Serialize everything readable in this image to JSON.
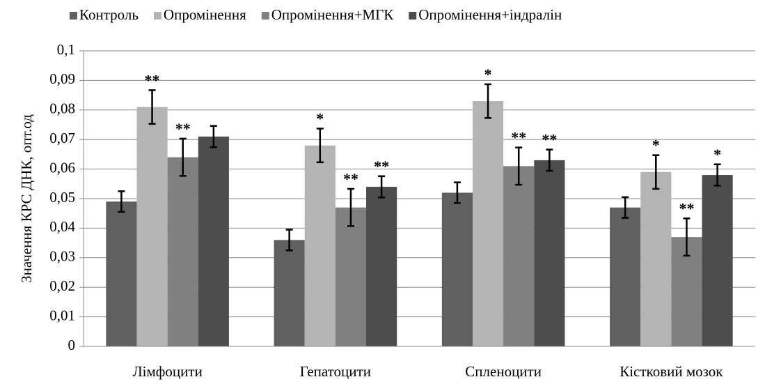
{
  "chart_data": {
    "type": "bar",
    "y_label": "Значення КРС ДНК, опт.од",
    "categories": [
      "Лімфоцити",
      "Гепатоцити",
      "Спленоцити",
      "Кістковий мозок"
    ],
    "series": [
      {
        "name": "Контроль",
        "color": "#606060",
        "values": [
          0.049,
          0.036,
          0.052,
          0.047
        ],
        "errors": [
          0.0035,
          0.0035,
          0.0035,
          0.0035
        ],
        "labels": [
          null,
          null,
          null,
          null
        ]
      },
      {
        "name": "Опромінення",
        "color": "#b4b4b4",
        "values": [
          0.081,
          0.068,
          0.083,
          0.059
        ],
        "errors": [
          0.0057,
          0.0057,
          0.0057,
          0.0057
        ],
        "labels": [
          "**",
          "*",
          "*",
          "*"
        ]
      },
      {
        "name": "Опромінення+МГК",
        "color": "#808080",
        "values": [
          0.064,
          0.047,
          0.061,
          0.037
        ],
        "errors": [
          0.0063,
          0.0063,
          0.0063,
          0.0063
        ],
        "labels": [
          "**",
          "**",
          "**",
          "**"
        ]
      },
      {
        "name": "Опромінення+індралін",
        "color": "#4d4d4d",
        "values": [
          0.071,
          0.054,
          0.063,
          0.058
        ],
        "errors": [
          0.0036,
          0.0036,
          0.0036,
          0.0036
        ],
        "labels": [
          null,
          "**",
          "**",
          "*"
        ]
      }
    ],
    "ylim": [
      0,
      0.1
    ],
    "yticks": [
      0,
      {
        "value": 0.01,
        "label": "0,01"
      },
      {
        "value": 0.02,
        "label": "0,02"
      },
      {
        "value": 0.03,
        "label": "0,03"
      },
      {
        "value": 0.04,
        "label": "0,04"
      },
      {
        "value": 0.05,
        "label": "0,05"
      },
      {
        "value": 0.06,
        "label": "0,06"
      },
      {
        "value": 0.07,
        "label": "0,07"
      },
      {
        "value": 0.08,
        "label": "0,08"
      },
      {
        "value": 0.09,
        "label": "0,09"
      },
      {
        "value": 0.1,
        "label": "0,1"
      }
    ],
    "grid": true,
    "legend": "top"
  }
}
